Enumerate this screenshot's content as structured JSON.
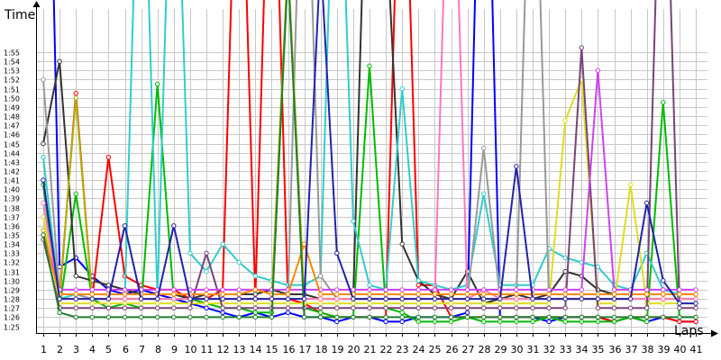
{
  "chart_data": {
    "type": "line",
    "ylabel": "Time",
    "xlabel": "Laps",
    "x": [
      1,
      2,
      3,
      4,
      5,
      6,
      7,
      8,
      9,
      10,
      11,
      12,
      13,
      14,
      15,
      16,
      17,
      18,
      19,
      20,
      21,
      22,
      23,
      24,
      25,
      26,
      27,
      28,
      29,
      30,
      31,
      32,
      33,
      34,
      35,
      36,
      37,
      38,
      39,
      40,
      41
    ],
    "y_ticks": [
      "1:25",
      "1:26",
      "1:27",
      "1:28",
      "1:29",
      "1:30",
      "1:31",
      "1:32",
      "1:33",
      "1:34",
      "1:35",
      "1:36",
      "1:37",
      "1:38",
      "1:39",
      "1:40",
      "1:41",
      "1:42",
      "1:43",
      "1:44",
      "1:45",
      "1:46",
      "1:47",
      "1:48",
      "1:49",
      "1:50",
      "1:51",
      "1:52",
      "1:53",
      "1:54",
      "1:55"
    ],
    "ylim_seconds": [
      84,
      128
    ],
    "grid": true,
    "series": [
      {
        "color": "#0000ff",
        "values": [
          175,
          91.5,
          92.5,
          90.5,
          89,
          88.5,
          89,
          88.5,
          88,
          87.5,
          87,
          86.5,
          86,
          86.5,
          86,
          86.5,
          86,
          86,
          85.5,
          86,
          86,
          85.5,
          85.5,
          86,
          86,
          86,
          86.5,
          160,
          86,
          86,
          86,
          85.5,
          86,
          86,
          86,
          85.5,
          86,
          85.5,
          86,
          85.5,
          85.5
        ]
      },
      {
        "color": "#ff0000",
        "values": [
          101,
          88,
          110.5,
          88,
          103.5,
          90.5,
          89.5,
          89,
          89,
          88,
          88,
          89,
          150,
          88,
          150,
          88,
          87.5,
          86.5,
          86,
          86,
          86,
          86,
          150,
          89.5,
          89.5,
          86,
          86,
          86,
          86,
          86,
          86,
          86,
          86,
          86,
          86,
          85.5,
          86,
          86,
          86,
          85.5,
          85.5
        ]
      },
      {
        "color": "#00bb00",
        "values": [
          100.5,
          87,
          99.5,
          88,
          87,
          87.5,
          87,
          111.5,
          88,
          88,
          87.5,
          87,
          87,
          86.5,
          86.5,
          124.5,
          87,
          86.5,
          86,
          86,
          113.5,
          87,
          86.5,
          85.5,
          85.5,
          85.5,
          86,
          85.5,
          85.5,
          85.5,
          85.5,
          86,
          85.5,
          85.5,
          85.5,
          85.5,
          86,
          85.5,
          109.5,
          86,
          86
        ]
      },
      {
        "color": "#333333",
        "values": [
          105,
          114,
          90.5,
          90,
          89.5,
          89,
          88.5,
          88.5,
          88.5,
          88,
          88.5,
          88.5,
          88.5,
          88.5,
          89,
          88.5,
          88.5,
          88,
          88,
          88,
          150,
          130,
          94,
          90,
          88.5,
          88,
          91,
          87.5,
          88,
          88.5,
          88,
          88.5,
          91,
          90.5,
          89,
          88.5,
          88.5,
          88.5,
          88.5,
          88.5,
          88.5
        ]
      },
      {
        "color": "#33cccc",
        "values": [
          103.5,
          88,
          88.5,
          88,
          88,
          88,
          150,
          88,
          150,
          93,
          91,
          94,
          92,
          90.5,
          90,
          89.5,
          89.5,
          90.5,
          150,
          96.5,
          89.5,
          89,
          111,
          90,
          89.5,
          89,
          89.5,
          99.5,
          89.5,
          89.5,
          89.5,
          93.5,
          92.5,
          92,
          91.5,
          89.5,
          89,
          93,
          89,
          88.5,
          88.5
        ]
      },
      {
        "color": "#999999",
        "values": [
          112,
          88.5,
          88.5,
          88,
          88,
          88,
          88,
          88,
          88,
          88,
          88,
          88,
          88,
          88,
          88,
          88,
          150,
          90.5,
          88,
          88,
          88,
          88,
          88,
          88,
          88,
          88,
          88,
          104.5,
          88,
          88,
          150,
          88,
          88,
          88,
          88,
          88,
          88,
          88,
          88,
          88,
          88
        ]
      },
      {
        "color": "#b0b000",
        "values": [
          95.5,
          88.5,
          110,
          88,
          88,
          88,
          88,
          88,
          88,
          88,
          88,
          88,
          88,
          88,
          88,
          125,
          88,
          88,
          88,
          88,
          88,
          88,
          88,
          88,
          88,
          88,
          88,
          88,
          88,
          88,
          88,
          88,
          88,
          88,
          88,
          88,
          88,
          88,
          88,
          88,
          88
        ]
      },
      {
        "color": "#dddd22",
        "values": [
          97,
          87.5,
          87.5,
          87.5,
          87.5,
          87.5,
          87.5,
          87.5,
          87.5,
          87.5,
          87.5,
          87.5,
          87.5,
          87.5,
          87.5,
          87.5,
          87.5,
          87.5,
          87.5,
          87.5,
          87.5,
          87.5,
          87.5,
          87.5,
          87.5,
          87.5,
          87.5,
          87.5,
          87.5,
          87.5,
          87.5,
          87.5,
          107.5,
          112,
          87.5,
          87.5,
          100.5,
          87.5,
          87.5,
          87.5,
          87.5
        ]
      },
      {
        "color": "#ff77bb",
        "values": [
          98.5,
          88,
          88,
          88,
          88,
          88,
          88,
          88,
          88,
          88,
          88,
          88,
          88,
          88,
          88,
          88,
          88,
          88,
          88,
          88,
          88,
          88,
          88,
          88,
          88,
          150,
          88,
          89,
          88,
          88,
          88,
          88,
          88,
          88,
          88,
          88,
          88,
          88,
          88,
          88,
          88
        ]
      },
      {
        "color": "#774477",
        "values": [
          94.5,
          87,
          87,
          87,
          87,
          87,
          87,
          87,
          87,
          87,
          93,
          87,
          87,
          87,
          87,
          87,
          87,
          87,
          87,
          87,
          87,
          87,
          87,
          87,
          87,
          87,
          87,
          87,
          87,
          87,
          87,
          87,
          87,
          115.5,
          87,
          87,
          87,
          87,
          150,
          87,
          87
        ]
      },
      {
        "color": "#cc44ee",
        "values": [
          95,
          89,
          89,
          89,
          89,
          89,
          89,
          89,
          89,
          89,
          89,
          89,
          89,
          89,
          89,
          89,
          89,
          89,
          89,
          89,
          89,
          89,
          89,
          89,
          89,
          89,
          89,
          89,
          89,
          89,
          89,
          89,
          89,
          89,
          113,
          89,
          89,
          89,
          89,
          89,
          89
        ]
      },
      {
        "color": "#ff8800",
        "values": [
          95,
          88.5,
          88.5,
          88.5,
          88.5,
          88.5,
          88.5,
          88.5,
          88.5,
          88.5,
          88.5,
          88.5,
          88.5,
          89,
          88.5,
          88.5,
          94,
          88.5,
          88.5,
          88.5,
          88.5,
          88.5,
          88.5,
          88.5,
          88.5,
          88.5,
          88.5,
          88.5,
          88.5,
          88.5,
          88.5,
          88.5,
          88.5,
          88.5,
          88.5,
          88.5,
          88.5,
          88.5,
          88.5,
          88.5,
          88.5
        ]
      },
      {
        "color": "#1f7f2f",
        "values": [
          95,
          86.5,
          86,
          86,
          86,
          86,
          86,
          86,
          86,
          86,
          86,
          86,
          86,
          86,
          86,
          124,
          86,
          86,
          86,
          86,
          86,
          86,
          86,
          86,
          86,
          86,
          86,
          86,
          86,
          86,
          86,
          86,
          86,
          86,
          86,
          86,
          86,
          86,
          86,
          86,
          86
        ]
      },
      {
        "color": "#2222aa",
        "values": [
          101,
          88,
          88,
          88,
          88,
          96,
          88,
          88,
          96,
          88,
          88,
          88,
          88,
          88,
          88,
          88,
          88,
          125.5,
          93,
          88,
          88,
          88,
          88,
          88,
          88,
          88,
          88,
          88,
          88,
          102.5,
          88,
          88,
          88,
          88,
          88,
          88,
          88,
          98.5,
          90,
          87.5,
          87.5
        ]
      }
    ]
  }
}
